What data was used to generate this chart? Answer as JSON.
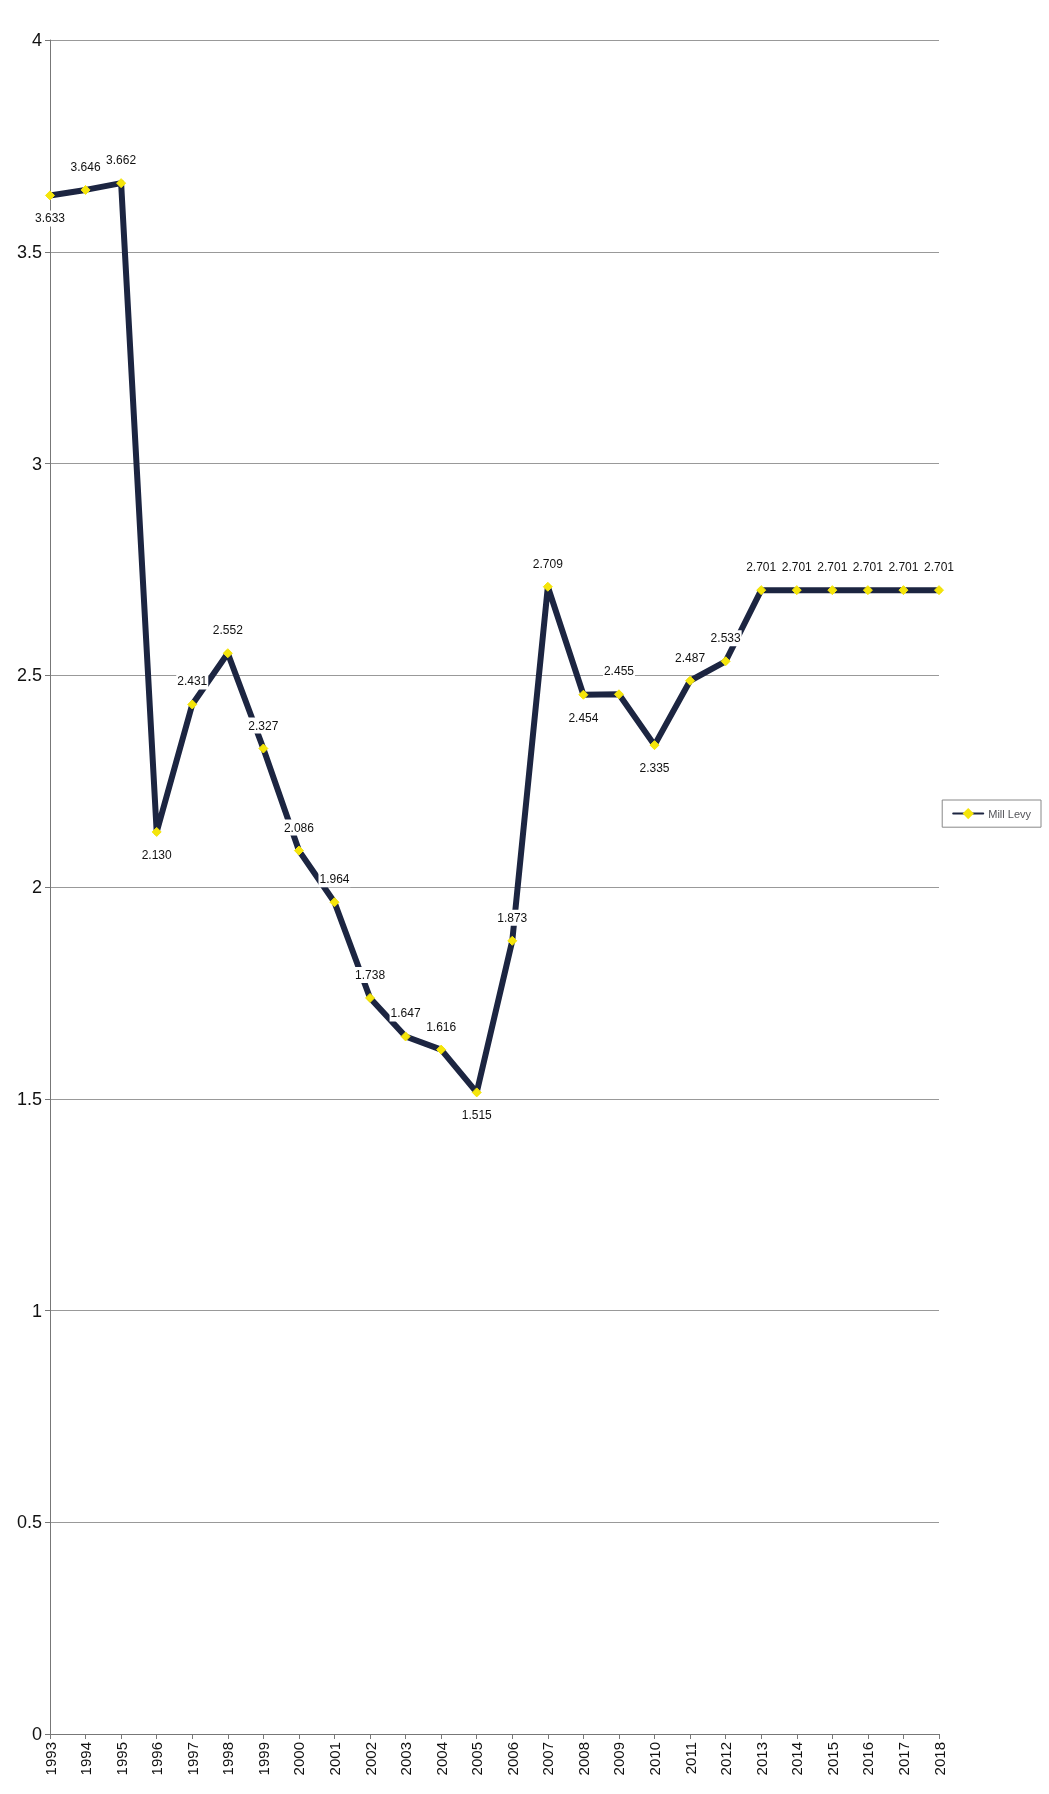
{
  "chart_data": {
    "type": "line",
    "categories": [
      "1993",
      "1994",
      "1995",
      "1996",
      "1997",
      "1998",
      "1999",
      "2000",
      "2001",
      "2002",
      "2003",
      "2004",
      "2005",
      "2006",
      "2007",
      "2008",
      "2009",
      "2010",
      "2011",
      "2012",
      "2013",
      "2014",
      "2015",
      "2016",
      "2017",
      "2018"
    ],
    "series": [
      {
        "name": "Mill Levy",
        "color": "#1c2541",
        "values": [
          3.633,
          3.646,
          3.662,
          2.13,
          2.431,
          2.552,
          2.327,
          2.086,
          1.964,
          1.738,
          1.647,
          1.616,
          1.515,
          1.873,
          2.709,
          2.454,
          2.455,
          2.335,
          2.487,
          2.533,
          2.701,
          2.701,
          2.701,
          2.701,
          2.701,
          2.701
        ],
        "value_labels": [
          "3.633",
          "3.646",
          "3.662",
          "2.130",
          "2.431",
          "2.552",
          "2.327",
          "2.086",
          "1.964",
          "1.738",
          "1.647",
          "1.616",
          "1.515",
          "1.873",
          "2.709",
          "2.454",
          "2.455",
          "2.335",
          "2.487",
          "2.533",
          "2.701",
          "2.701",
          "2.701",
          "2.701",
          "2.701",
          "2.701"
        ]
      }
    ],
    "ylim": [
      0,
      4
    ],
    "yticks": [
      0,
      0.5,
      1,
      1.5,
      2,
      2.5,
      3,
      3.5,
      4
    ],
    "grid": "y",
    "legend": "right",
    "marker": "diamond",
    "line_style": "solid"
  }
}
